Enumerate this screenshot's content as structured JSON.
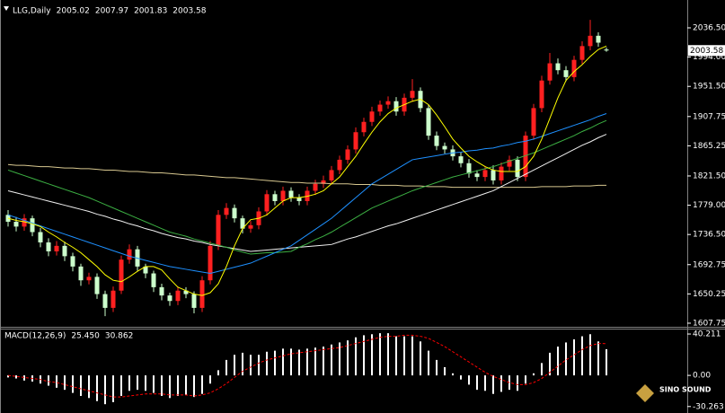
{
  "chart_data": [
    {
      "type": "candlestick",
      "title": "LLG,Daily",
      "open": [
        1765,
        1755,
        1748,
        1760,
        1740,
        1725,
        1712,
        1720,
        1705,
        1690,
        1670,
        1675,
        1650,
        1630,
        1655,
        1700,
        1715,
        1690,
        1680,
        1660,
        1648,
        1640,
        1655,
        1650,
        1630,
        1670,
        1720,
        1765,
        1775,
        1760,
        1745,
        1750,
        1770,
        1795,
        1785,
        1800,
        1790,
        1785,
        1800,
        1810,
        1815,
        1830,
        1845,
        1860,
        1885,
        1900,
        1915,
        1925,
        1930,
        1915,
        1935,
        1945,
        1920,
        1880,
        1865,
        1860,
        1850,
        1840,
        1825,
        1820,
        1830,
        1815,
        1835,
        1845,
        1820,
        1880,
        1920,
        1960,
        1985,
        1975,
        1965,
        1990,
        2010,
        2025,
        2005.02
      ],
      "high": [
        1772,
        1762,
        1766,
        1764,
        1746,
        1731,
        1727,
        1726,
        1710,
        1694,
        1681,
        1680,
        1655,
        1661,
        1706,
        1722,
        1720,
        1694,
        1684,
        1665,
        1652,
        1661,
        1660,
        1654,
        1676,
        1727,
        1772,
        1782,
        1780,
        1764,
        1756,
        1776,
        1801,
        1800,
        1806,
        1805,
        1795,
        1806,
        1816,
        1822,
        1836,
        1851,
        1866,
        1892,
        1906,
        1922,
        1931,
        1937,
        1936,
        1941,
        1962,
        1950,
        1925,
        1886,
        1870,
        1866,
        1856,
        1846,
        1830,
        1836,
        1837,
        1841,
        1851,
        1850,
        1886,
        1926,
        1967,
        2000,
        1992,
        1981,
        1996,
        2017,
        2048,
        2030,
        2007.97
      ],
      "low": [
        1748,
        1741,
        1742,
        1734,
        1718,
        1705,
        1706,
        1698,
        1683,
        1662,
        1664,
        1643,
        1618,
        1624,
        1650,
        1694,
        1684,
        1673,
        1653,
        1641,
        1633,
        1634,
        1644,
        1622,
        1624,
        1664,
        1714,
        1759,
        1754,
        1738,
        1739,
        1744,
        1764,
        1779,
        1779,
        1784,
        1779,
        1779,
        1794,
        1804,
        1809,
        1824,
        1839,
        1854,
        1879,
        1894,
        1909,
        1919,
        1909,
        1909,
        1929,
        1914,
        1874,
        1859,
        1854,
        1844,
        1834,
        1819,
        1814,
        1814,
        1809,
        1809,
        1829,
        1814,
        1814,
        1874,
        1914,
        1954,
        1969,
        1959,
        1959,
        1984,
        2004,
        2009,
        2001.83
      ],
      "close": [
        1755,
        1748,
        1760,
        1740,
        1725,
        1712,
        1720,
        1705,
        1690,
        1670,
        1675,
        1650,
        1630,
        1655,
        1700,
        1715,
        1690,
        1680,
        1660,
        1648,
        1640,
        1655,
        1650,
        1630,
        1670,
        1720,
        1765,
        1775,
        1760,
        1745,
        1750,
        1770,
        1795,
        1785,
        1800,
        1790,
        1785,
        1800,
        1810,
        1815,
        1830,
        1845,
        1860,
        1885,
        1900,
        1915,
        1925,
        1930,
        1915,
        1935,
        1945,
        1920,
        1880,
        1865,
        1860,
        1850,
        1840,
        1825,
        1820,
        1830,
        1815,
        1835,
        1845,
        1820,
        1880,
        1920,
        1960,
        1985,
        1975,
        1965,
        1990,
        2010,
        2025,
        2015,
        2003.58
      ],
      "up_color": "#ff2020",
      "down_color": "#ccffcc",
      "overlays": [
        {
          "color": "#d8c890",
          "values": [
            1838,
            1837,
            1837,
            1836,
            1835,
            1835,
            1834,
            1833,
            1833,
            1832,
            1832,
            1831,
            1830,
            1830,
            1829,
            1828,
            1828,
            1827,
            1826,
            1826,
            1825,
            1824,
            1823,
            1823,
            1822,
            1821,
            1820,
            1819,
            1819,
            1818,
            1817,
            1816,
            1815,
            1814,
            1813,
            1812,
            1812,
            1811,
            1811,
            1811,
            1810,
            1810,
            1810,
            1809,
            1809,
            1809,
            1808,
            1808,
            1808,
            1807,
            1807,
            1807,
            1806,
            1806,
            1806,
            1805,
            1805,
            1805,
            1805,
            1805,
            1805,
            1805,
            1805,
            1805,
            1805,
            1805,
            1806,
            1806,
            1806,
            1806,
            1807,
            1807,
            1807,
            1808,
            1808
          ]
        },
        {
          "color": "#f0f0f0",
          "values": [
            1800,
            1797,
            1794,
            1791,
            1788,
            1785,
            1782,
            1779,
            1776,
            1773,
            1770,
            1766,
            1763,
            1759,
            1756,
            1752,
            1749,
            1745,
            1742,
            1738,
            1735,
            1732,
            1730,
            1727,
            1725,
            1722,
            1720,
            1718,
            1716,
            1714,
            1712,
            1713,
            1714,
            1715,
            1716,
            1717,
            1718,
            1719,
            1720,
            1721,
            1722,
            1726,
            1730,
            1733,
            1737,
            1741,
            1745,
            1749,
            1752,
            1756,
            1760,
            1764,
            1768,
            1772,
            1776,
            1780,
            1784,
            1788,
            1792,
            1796,
            1800,
            1806,
            1812,
            1818,
            1824,
            1830,
            1836,
            1842,
            1848,
            1854,
            1860,
            1866,
            1871,
            1877,
            1882
          ]
        },
        {
          "color": "#3cb043",
          "values": [
            1830,
            1826,
            1822,
            1818,
            1814,
            1810,
            1806,
            1802,
            1798,
            1794,
            1790,
            1785,
            1780,
            1775,
            1770,
            1765,
            1760,
            1755,
            1750,
            1745,
            1740,
            1737,
            1734,
            1730,
            1727,
            1724,
            1721,
            1718,
            1714,
            1711,
            1708,
            1709,
            1710,
            1710,
            1711,
            1712,
            1718,
            1723,
            1729,
            1734,
            1740,
            1747,
            1754,
            1761,
            1768,
            1775,
            1780,
            1785,
            1790,
            1795,
            1800,
            1804,
            1808,
            1812,
            1816,
            1820,
            1823,
            1826,
            1829,
            1832,
            1835,
            1839,
            1843,
            1847,
            1851,
            1855,
            1860,
            1865,
            1870,
            1875,
            1880,
            1886,
            1891,
            1897,
            1902
          ]
        },
        {
          "color": "#1e90ff",
          "values": [
            1765,
            1761,
            1757,
            1753,
            1749,
            1745,
            1741,
            1737,
            1733,
            1729,
            1725,
            1721,
            1717,
            1713,
            1709,
            1705,
            1702,
            1699,
            1696,
            1693,
            1690,
            1688,
            1686,
            1684,
            1682,
            1680,
            1683,
            1686,
            1689,
            1692,
            1695,
            1700,
            1705,
            1710,
            1715,
            1720,
            1728,
            1736,
            1744,
            1752,
            1760,
            1770,
            1780,
            1790,
            1800,
            1810,
            1817,
            1824,
            1831,
            1838,
            1845,
            1847,
            1849,
            1851,
            1853,
            1855,
            1856,
            1858,
            1859,
            1861,
            1862,
            1865,
            1867,
            1870,
            1872,
            1875,
            1879,
            1883,
            1887,
            1891,
            1895,
            1899,
            1903,
            1908,
            1912
          ]
        },
        {
          "color": "#ffff00",
          "values": [
            1760,
            1757,
            1755,
            1752,
            1748,
            1740,
            1733,
            1725,
            1718,
            1710,
            1700,
            1690,
            1678,
            1670,
            1668,
            1675,
            1683,
            1690,
            1690,
            1685,
            1672,
            1660,
            1655,
            1650,
            1648,
            1652,
            1665,
            1690,
            1720,
            1745,
            1758,
            1760,
            1765,
            1775,
            1785,
            1790,
            1790,
            1792,
            1795,
            1800,
            1810,
            1820,
            1835,
            1850,
            1868,
            1885,
            1900,
            1912,
            1920,
            1925,
            1930,
            1933,
            1925,
            1910,
            1893,
            1875,
            1862,
            1850,
            1842,
            1835,
            1830,
            1828,
            1828,
            1828,
            1835,
            1850,
            1875,
            1905,
            1935,
            1960,
            1973,
            1983,
            1995,
            2005,
            2010
          ]
        }
      ],
      "ylim": [
        1603.8,
        2070.4
      ],
      "yticks": [
        {
          "value": 2036.5,
          "label": "2036.50"
        },
        {
          "value": 1994,
          "label": "1994.00"
        },
        {
          "value": 1951.5,
          "label": "1951.50"
        },
        {
          "value": 1907.75,
          "label": "1907.75"
        },
        {
          "value": 1865.25,
          "label": "1865.25"
        },
        {
          "value": 1821.5,
          "label": "1821.50"
        },
        {
          "value": 1779,
          "label": "1779.00"
        },
        {
          "value": 1736.5,
          "label": "1736.50"
        },
        {
          "value": 1692.75,
          "label": "1692.75"
        },
        {
          "value": 1650.25,
          "label": "1650.25"
        },
        {
          "value": 1607.75,
          "label": "1607.75"
        }
      ]
    },
    {
      "type": "macd",
      "title": "MACD(12,26,9)",
      "series": [
        {
          "kind": "histogram",
          "color": "#ffffff",
          "last_value_label": "25.450",
          "values": [
            -2,
            -3,
            -5,
            -6,
            -8,
            -10,
            -12,
            -14,
            -17,
            -20,
            -22,
            -25,
            -28,
            -26,
            -20,
            -15,
            -14,
            -15,
            -17,
            -20,
            -22,
            -20,
            -19,
            -21,
            -18,
            -8,
            5,
            15,
            20,
            22,
            20,
            20,
            23,
            24,
            26,
            26,
            25,
            26,
            27,
            28,
            30,
            32,
            34,
            37,
            39,
            40,
            41,
            41,
            38,
            38,
            38,
            33,
            24,
            15,
            8,
            2,
            -4,
            -9,
            -14,
            -15,
            -18,
            -16,
            -14,
            -15,
            -8,
            2,
            12,
            22,
            28,
            32,
            35,
            38,
            40,
            33,
            25.45
          ]
        },
        {
          "kind": "signal",
          "color": "#ff0000",
          "last_value_label": "30.862",
          "values": [
            0,
            -1,
            -2,
            -3,
            -4,
            -6,
            -7,
            -9,
            -11,
            -13,
            -15,
            -17,
            -19,
            -21,
            -21,
            -20,
            -19,
            -18,
            -18,
            -18,
            -19,
            -19,
            -19,
            -20,
            -19,
            -17,
            -13,
            -8,
            -2,
            4,
            8,
            12,
            15,
            17,
            19,
            21,
            22,
            23,
            24,
            25,
            26,
            27,
            29,
            31,
            33,
            35,
            37,
            38,
            38,
            39,
            39,
            38,
            36,
            32,
            28,
            23,
            18,
            13,
            8,
            3,
            -1,
            -4,
            -7,
            -9,
            -9,
            -7,
            -3,
            3,
            9,
            15,
            20,
            25,
            29,
            31,
            30.862
          ]
        }
      ],
      "ylim": [
        -32.2,
        44.6
      ],
      "yticks": [
        40.211,
        {
          "value": 0,
          "label": "0.00"
        },
        -30.263
      ]
    }
  ],
  "logo": "SINO SOUND"
}
